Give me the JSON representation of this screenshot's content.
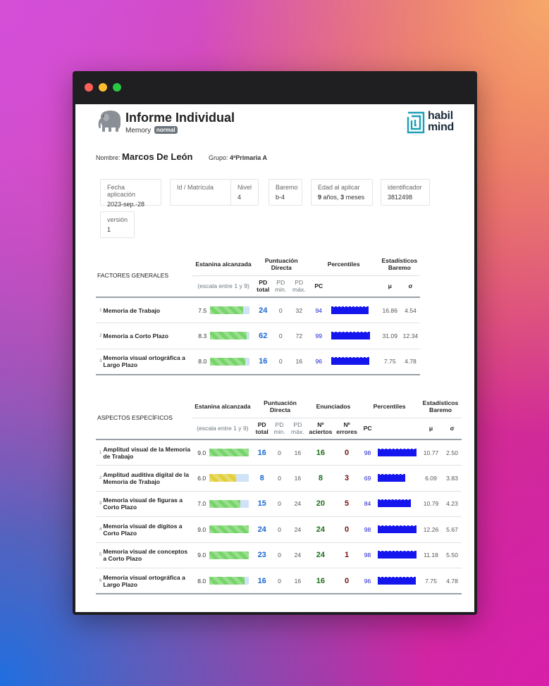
{
  "header": {
    "title": "Informe Individual",
    "subtitle": "Memory",
    "badge": "normal",
    "logo_line1": "habil",
    "logo_line2": "mind"
  },
  "student": {
    "name_label": "Nombre:",
    "name": "Marcos De León",
    "group_label": "Grupo:",
    "group": "4ºPrimaria A"
  },
  "info": [
    {
      "label": "Fecha aplicación",
      "value": "2023-sep.-28"
    },
    {
      "label": "Id / Matrícula",
      "value": ""
    },
    {
      "label": "Nivel",
      "value": "4"
    },
    {
      "label": "Baremo",
      "value": "b-4"
    },
    {
      "label": "Edad al aplicar",
      "years": "9",
      "years_unit": "años,",
      "months": "3",
      "months_unit": "meses"
    },
    {
      "label": "identificador",
      "value": "3812498"
    },
    {
      "label": "versión",
      "value": "1"
    }
  ],
  "cols": {
    "estanina": "Estanina alcanzada",
    "escala": "(escala entre 1 y 9)",
    "puntuacion": "Puntuación Directa",
    "pd_total": "PD total",
    "pd_min": "PD min.",
    "pd_max": "PD máx.",
    "enunciados": "Enunciados",
    "aciertos": "Nº aciertos",
    "errores": "Nº errores",
    "percentiles": "Percentiles",
    "pc": "PC",
    "estadisticos": "Estadísticos Baremo",
    "mu": "μ",
    "sigma": "σ"
  },
  "factores": {
    "title": "FACTORES GENERALES",
    "rows": [
      {
        "n": "1",
        "label": "Memoria de Trabajo",
        "estanina": "7.5",
        "estanina_value": 7.5,
        "bar_color": "#77d46a",
        "pd": "24",
        "min": "0",
        "max": "32",
        "pc": "94",
        "pc_value": 94,
        "mu": "16.86",
        "sigma": "4.54"
      },
      {
        "n": "2",
        "label": "Memoria a Corto Plazo",
        "estanina": "8.3",
        "estanina_value": 8.3,
        "bar_color": "#77d46a",
        "pd": "62",
        "min": "0",
        "max": "72",
        "pc": "99",
        "pc_value": 99,
        "mu": "31.09",
        "sigma": "12.34"
      },
      {
        "n": "3",
        "label": "Memoria visual ortográfica a Largo Plazo",
        "estanina": "8.0",
        "estanina_value": 8.0,
        "bar_color": "#77d46a",
        "pd": "16",
        "min": "0",
        "max": "16",
        "pc": "96",
        "pc_value": 96,
        "mu": "7.75",
        "sigma": "4.78"
      }
    ]
  },
  "aspectos": {
    "title": "ASPECTOS ESPECÍFICOS",
    "rows": [
      {
        "n": "1",
        "label": "Amplitud visual de la Memoria de Trabajo",
        "estanina": "9.0",
        "estanina_value": 9.0,
        "bar_color": "#77d46a",
        "pd": "16",
        "min": "0",
        "max": "16",
        "aciertos": "16",
        "errores": "0",
        "pc": "98",
        "pc_value": 98,
        "mu": "10.77",
        "sigma": "2.50"
      },
      {
        "n": "2",
        "label": "Amplitud auditiva digital de la Memoria de Trabajo",
        "estanina": "6.0",
        "estanina_value": 6.0,
        "bar_color": "#e2cf3a",
        "pd": "8",
        "min": "0",
        "max": "16",
        "aciertos": "8",
        "errores": "3",
        "pc": "69",
        "pc_value": 69,
        "mu": "6.09",
        "sigma": "3.83"
      },
      {
        "n": "3",
        "label": "Memoria visual de figuras a Corto Plazo",
        "estanina": "7.0",
        "estanina_value": 7.0,
        "bar_color": "#77d46a",
        "pd": "15",
        "min": "0",
        "max": "24",
        "aciertos": "20",
        "errores": "5",
        "pc": "84",
        "pc_value": 84,
        "mu": "10.79",
        "sigma": "4.23"
      },
      {
        "n": "4",
        "label": "Memoria visual de dígitos a Corto Plazo",
        "estanina": "9.0",
        "estanina_value": 9.0,
        "bar_color": "#77d46a",
        "pd": "24",
        "min": "0",
        "max": "24",
        "aciertos": "24",
        "errores": "0",
        "pc": "98",
        "pc_value": 98,
        "mu": "12.26",
        "sigma": "5.67"
      },
      {
        "n": "5",
        "label": "Memoria visual de conceptos a Corto Plazo",
        "estanina": "9.0",
        "estanina_value": 9.0,
        "bar_color": "#77d46a",
        "pd": "23",
        "min": "0",
        "max": "24",
        "aciertos": "24",
        "errores": "1",
        "pc": "98",
        "pc_value": 98,
        "mu": "11.18",
        "sigma": "5.50"
      },
      {
        "n": "6",
        "label": "Memoria visual ortográfica a Largo Plazo",
        "estanina": "8.0",
        "estanina_value": 8.0,
        "bar_color": "#77d46a",
        "pd": "16",
        "min": "0",
        "max": "16",
        "aciertos": "16",
        "errores": "0",
        "pc": "96",
        "pc_value": 96,
        "mu": "7.75",
        "sigma": "4.78"
      }
    ]
  }
}
